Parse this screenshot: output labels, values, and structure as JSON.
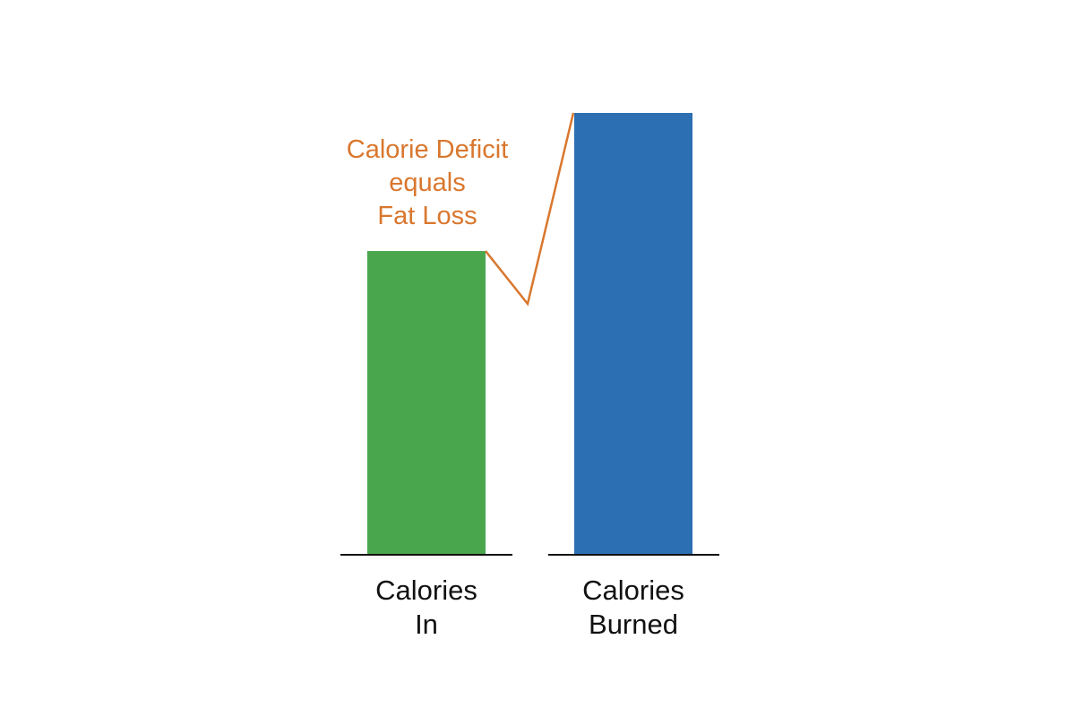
{
  "chart_data": {
    "type": "bar",
    "categories": [
      [
        "Calories",
        "In"
      ],
      [
        "Calories",
        "Burned"
      ]
    ],
    "values": [
      2.2,
      3.2
    ],
    "colors": [
      "#4aa64d",
      "#2c6fb3"
    ],
    "axis_color": "#111111",
    "ylim": [
      0,
      3.2
    ],
    "grid": false,
    "legend": "none",
    "title": "",
    "xlabel": "",
    "ylabel": "",
    "annotation": {
      "lines": [
        "Calorie Deficit",
        "equals",
        "Fat Loss"
      ],
      "color": "#d9772e"
    }
  }
}
